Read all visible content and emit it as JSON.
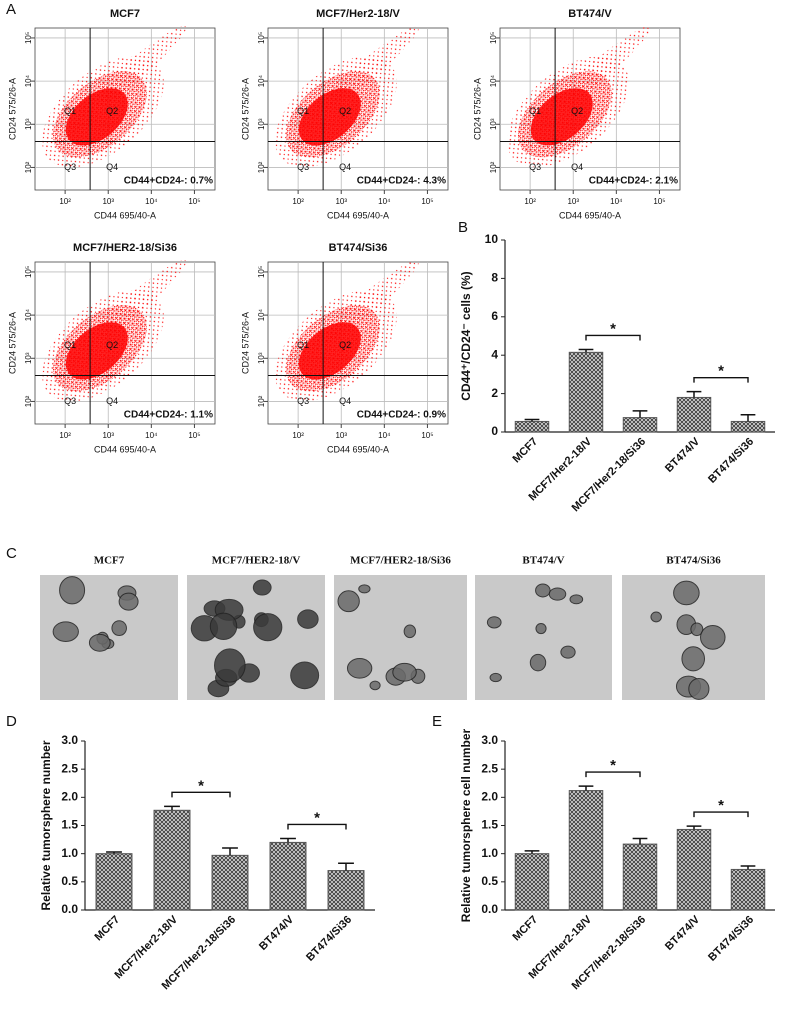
{
  "panel_labels": [
    "A",
    "B",
    "C",
    "D",
    "E"
  ],
  "chart_data": [
    {
      "type": "flow",
      "title": "MCF7",
      "xlabel": "CD44 695/40-A",
      "ylabel": "CD24 575/26-A",
      "log_scale": true,
      "grid": true,
      "xlim": [
        20,
        300000
      ],
      "ylim": [
        30,
        170000
      ],
      "xticks": [
        {
          "value": 100,
          "label": "10²"
        },
        {
          "value": 1000,
          "label": "10³"
        },
        {
          "value": 10000,
          "label": "10⁴"
        },
        {
          "value": 100000,
          "label": "10⁵"
        }
      ],
      "yticks": [
        {
          "value": 100,
          "label": "10²"
        },
        {
          "value": 1000,
          "label": "10³"
        },
        {
          "value": 10000,
          "label": "10⁴"
        },
        {
          "value": 100000,
          "label": "10⁵"
        }
      ],
      "gates": {
        "x": 380,
        "y": 400
      },
      "quadrant_labels": [
        "Q1",
        "Q2",
        "Q3",
        "Q4"
      ],
      "annotation": "CD44+CD24-: 0.7%",
      "color": "#ff0000"
    },
    {
      "type": "flow",
      "title": "MCF7/Her2-18/V",
      "xlabel": "CD44 695/40-A",
      "ylabel": "CD24 575/26-A",
      "log_scale": true,
      "grid": true,
      "xlim": [
        20,
        300000
      ],
      "ylim": [
        30,
        170000
      ],
      "xticks": [
        {
          "value": 100,
          "label": "10²"
        },
        {
          "value": 1000,
          "label": "10³"
        },
        {
          "value": 10000,
          "label": "10⁴"
        },
        {
          "value": 100000,
          "label": "10⁵"
        }
      ],
      "yticks": [
        {
          "value": 100,
          "label": "10²"
        },
        {
          "value": 1000,
          "label": "10³"
        },
        {
          "value": 10000,
          "label": "10⁴"
        },
        {
          "value": 100000,
          "label": "10⁵"
        }
      ],
      "gates": {
        "x": 380,
        "y": 400
      },
      "quadrant_labels": [
        "Q1",
        "Q2",
        "Q3",
        "Q4"
      ],
      "annotation": "CD44+CD24-: 4.3%",
      "color": "#ff0000"
    },
    {
      "type": "flow",
      "title": "BT474/V",
      "xlabel": "CD44 695/40-A",
      "ylabel": "CD24 575/26-A",
      "log_scale": true,
      "grid": true,
      "xlim": [
        20,
        300000
      ],
      "ylim": [
        30,
        170000
      ],
      "xticks": [
        {
          "value": 100,
          "label": "10²"
        },
        {
          "value": 1000,
          "label": "10³"
        },
        {
          "value": 10000,
          "label": "10⁴"
        },
        {
          "value": 100000,
          "label": "10⁵"
        }
      ],
      "yticks": [
        {
          "value": 100,
          "label": "10²"
        },
        {
          "value": 1000,
          "label": "10³"
        },
        {
          "value": 10000,
          "label": "10⁴"
        },
        {
          "value": 100000,
          "label": "10⁵"
        }
      ],
      "gates": {
        "x": 380,
        "y": 400
      },
      "quadrant_labels": [
        "Q1",
        "Q2",
        "Q3",
        "Q4"
      ],
      "annotation": "CD44+CD24-: 2.1%",
      "color": "#ff0000"
    },
    {
      "type": "flow",
      "title": "MCF7/HER2-18/Si36",
      "xlabel": "CD44 695/40-A",
      "ylabel": "CD24 575/26-A",
      "log_scale": true,
      "grid": true,
      "xlim": [
        20,
        300000
      ],
      "ylim": [
        30,
        170000
      ],
      "xticks": [
        {
          "value": 100,
          "label": "10²"
        },
        {
          "value": 1000,
          "label": "10³"
        },
        {
          "value": 10000,
          "label": "10⁴"
        },
        {
          "value": 100000,
          "label": "10⁵"
        }
      ],
      "yticks": [
        {
          "value": 100,
          "label": "10²"
        },
        {
          "value": 1000,
          "label": "10³"
        },
        {
          "value": 10000,
          "label": "10⁴"
        },
        {
          "value": 100000,
          "label": "10⁵"
        }
      ],
      "gates": {
        "x": 380,
        "y": 400
      },
      "quadrant_labels": [
        "Q1",
        "Q2",
        "Q3",
        "Q4"
      ],
      "annotation": "CD44+CD24-: 1.1%",
      "color": "#ff0000"
    },
    {
      "type": "flow",
      "title": "BT474/Si36",
      "xlabel": "CD44 695/40-A",
      "ylabel": "CD24 575/26-A",
      "log_scale": true,
      "grid": true,
      "xlim": [
        20,
        300000
      ],
      "ylim": [
        30,
        170000
      ],
      "xticks": [
        {
          "value": 100,
          "label": "10²"
        },
        {
          "value": 1000,
          "label": "10³"
        },
        {
          "value": 10000,
          "label": "10⁴"
        },
        {
          "value": 100000,
          "label": "10⁵"
        }
      ],
      "yticks": [
        {
          "value": 100,
          "label": "10²"
        },
        {
          "value": 1000,
          "label": "10³"
        },
        {
          "value": 10000,
          "label": "10⁴"
        },
        {
          "value": 100000,
          "label": "10⁵"
        }
      ],
      "gates": {
        "x": 380,
        "y": 400
      },
      "quadrant_labels": [
        "Q1",
        "Q2",
        "Q3",
        "Q4"
      ],
      "annotation": "CD44+CD24-: 0.9%",
      "color": "#ff0000"
    },
    {
      "type": "bar",
      "ylabel": "CD44⁺/CD24⁻ cells (%)",
      "categories": [
        "MCF7",
        "MCF7/Her2-18/V",
        "MCF7/Her2-18/Si36",
        "BT474/V",
        "BT474/Si36"
      ],
      "values": [
        0.55,
        4.15,
        0.75,
        1.8,
        0.55
      ],
      "errors": [
        0.1,
        0.15,
        0.35,
        0.3,
        0.35
      ],
      "ylim": [
        0,
        10
      ],
      "yticks": [
        0,
        2,
        4,
        6,
        8,
        10
      ],
      "color": "#555555",
      "significance": [
        {
          "between": [
            "MCF7/Her2-18/V",
            "MCF7/Her2-18/Si36"
          ],
          "label": "*"
        },
        {
          "between": [
            "BT474/V",
            "BT474/Si36"
          ],
          "label": "*"
        }
      ]
    },
    {
      "type": "bar",
      "ylabel": "Relative tumorsphere number",
      "categories": [
        "MCF7",
        "MCF7/Her2-18/V",
        "MCF7/Her2-18/Si36",
        "BT474/V",
        "BT474/Si36"
      ],
      "values": [
        1.0,
        1.77,
        0.97,
        1.2,
        0.7
      ],
      "errors": [
        0.03,
        0.07,
        0.13,
        0.07,
        0.13
      ],
      "ylim": [
        0,
        3
      ],
      "yticks": [
        {
          "value": 0,
          "label": "0.0"
        },
        {
          "value": 0.5,
          "label": "0.5"
        },
        {
          "value": 1,
          "label": "1.0"
        },
        {
          "value": 1.5,
          "label": "1.5"
        },
        {
          "value": 2,
          "label": "2.0"
        },
        {
          "value": 2.5,
          "label": "2.5"
        },
        {
          "value": 3,
          "label": "3.0"
        }
      ],
      "color": "#555555",
      "significance": [
        {
          "between": [
            "MCF7/Her2-18/V",
            "MCF7/Her2-18/Si36"
          ],
          "label": "*"
        },
        {
          "between": [
            "BT474/V",
            "BT474/Si36"
          ],
          "label": "*"
        }
      ]
    },
    {
      "type": "bar",
      "ylabel": "Relative tumorsphere cell number",
      "categories": [
        "MCF7",
        "MCF7/Her2-18/V",
        "MCF7/Her2-18/Si36",
        "BT474/V",
        "BT474/Si36"
      ],
      "values": [
        1.0,
        2.12,
        1.17,
        1.43,
        0.72
      ],
      "errors": [
        0.05,
        0.08,
        0.1,
        0.06,
        0.06
      ],
      "ylim": [
        0,
        3
      ],
      "yticks": [
        {
          "value": 0,
          "label": "0.0"
        },
        {
          "value": 0.5,
          "label": "0.5"
        },
        {
          "value": 1,
          "label": "1.0"
        },
        {
          "value": 1.5,
          "label": "1.5"
        },
        {
          "value": 2,
          "label": "2.0"
        },
        {
          "value": 2.5,
          "label": "2.5"
        },
        {
          "value": 3,
          "label": "3.0"
        }
      ],
      "color": "#555555",
      "significance": [
        {
          "between": [
            "MCF7/Her2-18/V",
            "MCF7/Her2-18/Si36"
          ],
          "label": "*"
        },
        {
          "between": [
            "BT474/V",
            "BT474/Si36"
          ],
          "label": "*"
        }
      ]
    }
  ],
  "micrographs": {
    "titles": [
      "MCF7",
      "MCF7/HER2-18/V",
      "MCF7/HER2-18/Si36",
      "BT474/V",
      "BT474/Si36"
    ]
  }
}
